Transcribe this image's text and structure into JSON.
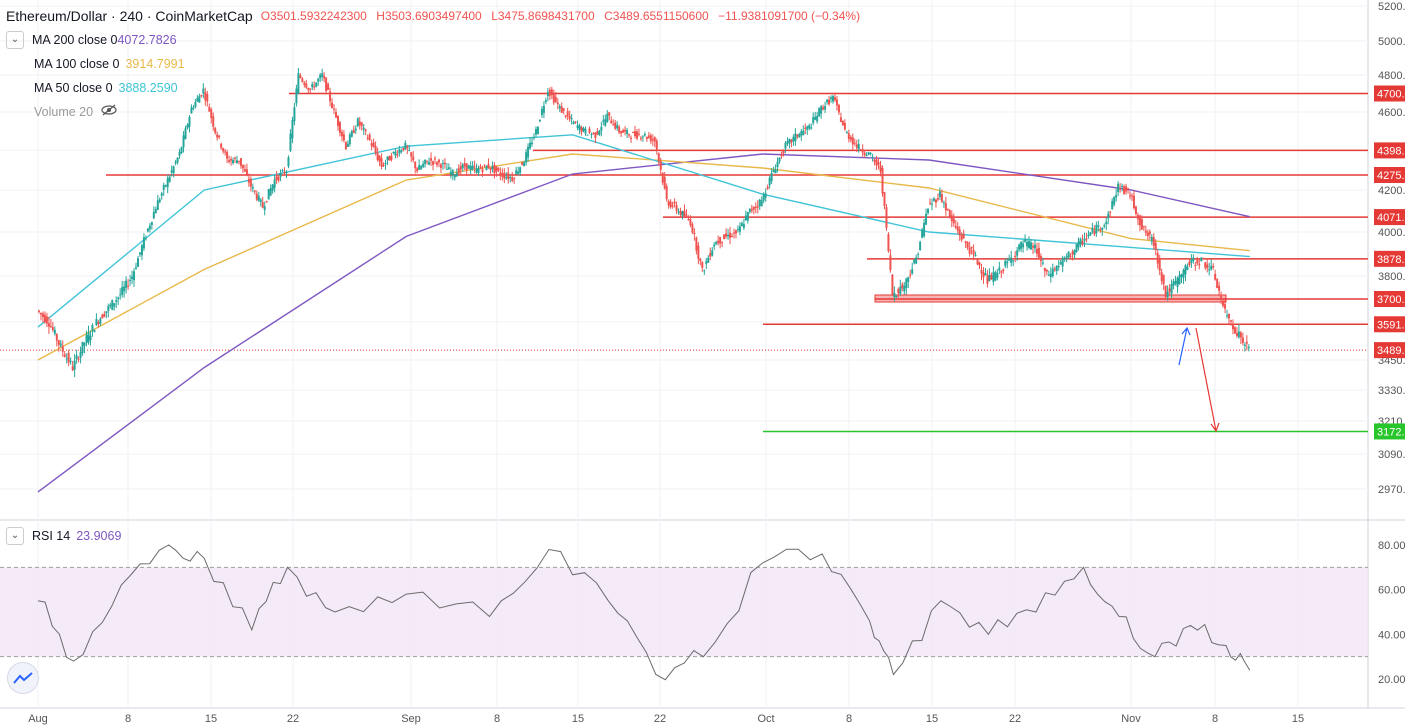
{
  "header": {
    "symbol": "Ethereum/Dollar",
    "interval": "240",
    "source": "CoinMarketCap",
    "ohlc": {
      "open": "O3501.5932242300",
      "high": "H3503.6903497400",
      "low": "L3475.8698431700",
      "close": "C3489.6551150600",
      "change": "−11.9381091700 (−0.34%)"
    }
  },
  "indicators": [
    {
      "label": "MA 200 close 0",
      "value": "4072.7826",
      "color": "#7e57c2"
    },
    {
      "label": "MA 100 close 0",
      "value": "3914.7991",
      "color": "#e8b84a"
    },
    {
      "label": "MA 50 close 0",
      "value": "3888.2590",
      "color": "#40c4d8"
    },
    {
      "label": "Volume 20",
      "value": "",
      "color": "#999999"
    }
  ],
  "rsi_panel": {
    "label": "RSI 14",
    "value": "23.9069"
  },
  "chart_data": {
    "type": "line",
    "price_axis": {
      "ticks": [
        5200,
        5000,
        4800,
        4600,
        4400,
        4200,
        4000,
        3800,
        3600,
        3450,
        3330,
        3210,
        3090,
        2970
      ],
      "labels": [
        "5200.0",
        "5000.0",
        "4800.0",
        "4600.0",
        "4400.0",
        "4200.0",
        "4000.0",
        "3800.0",
        "3600.0",
        "3450.0",
        "3330.0",
        "3210.0",
        "3090.0",
        "2970.0"
      ]
    },
    "rsi_axis": {
      "ticks": [
        80,
        60,
        40,
        20
      ],
      "labels": [
        "80.00",
        "60.00",
        "40.00",
        "20.00"
      ],
      "band": [
        30,
        70
      ]
    },
    "time_axis": [
      "Aug",
      "8",
      "15",
      "22",
      "Sep",
      "8",
      "15",
      "22",
      "Oct",
      "8",
      "15",
      "22",
      "Nov",
      "8",
      "15"
    ],
    "price_series": {
      "name": "Ethereum/Dollar",
      "points": [
        [
          "Aug 1",
          3650
        ],
        [
          "Aug 2",
          3600
        ],
        [
          "Aug 3",
          3500
        ],
        [
          "Aug 4",
          3420
        ],
        [
          "Aug 5",
          3520
        ],
        [
          "Aug 6",
          3600
        ],
        [
          "Aug 7",
          3660
        ],
        [
          "Aug 8",
          3720
        ],
        [
          "Aug 9",
          3800
        ],
        [
          "Aug 10",
          3960
        ],
        [
          "Aug 11",
          4120
        ],
        [
          "Aug 12",
          4250
        ],
        [
          "Aug 13",
          4380
        ],
        [
          "Aug 14",
          4620
        ],
        [
          "Aug 15",
          4720
        ],
        [
          "Aug 16",
          4500
        ],
        [
          "Aug 17",
          4350
        ],
        [
          "Aug 18",
          4350
        ],
        [
          "Aug 19",
          4220
        ],
        [
          "Aug 20",
          4120
        ],
        [
          "Aug 21",
          4250
        ],
        [
          "Aug 22",
          4300
        ],
        [
          "Aug 23",
          4800
        ],
        [
          "Aug 24",
          4720
        ],
        [
          "Aug 25",
          4800
        ],
        [
          "Aug 26",
          4600
        ],
        [
          "Aug 27",
          4420
        ],
        [
          "Aug 28",
          4550
        ],
        [
          "Aug 29",
          4450
        ],
        [
          "Aug 30",
          4320
        ],
        [
          "Aug 31",
          4380
        ],
        [
          "Sep 1",
          4420
        ],
        [
          "Sep 2",
          4300
        ],
        [
          "Sep 3",
          4350
        ],
        [
          "Sep 4",
          4330
        ],
        [
          "Sep 5",
          4280
        ],
        [
          "Sep 6",
          4320
        ],
        [
          "Sep 7",
          4300
        ],
        [
          "Sep 8",
          4320
        ],
        [
          "Sep 9",
          4280
        ],
        [
          "Sep 10",
          4260
        ],
        [
          "Sep 11",
          4350
        ],
        [
          "Sep 12",
          4500
        ],
        [
          "Sep 13",
          4720
        ],
        [
          "Sep 14",
          4620
        ],
        [
          "Sep 15",
          4550
        ],
        [
          "Sep 16",
          4500
        ],
        [
          "Sep 17",
          4480
        ],
        [
          "Sep 18",
          4580
        ],
        [
          "Sep 19",
          4500
        ],
        [
          "Sep 20",
          4480
        ],
        [
          "Sep 21",
          4480
        ],
        [
          "Sep 22",
          4450
        ],
        [
          "Sep 23",
          4150
        ],
        [
          "Sep 24",
          4100
        ],
        [
          "Sep 25",
          4050
        ],
        [
          "Sep 26",
          3820
        ],
        [
          "Sep 27",
          3950
        ],
        [
          "Sep 28",
          3980
        ],
        [
          "Sep 29",
          4000
        ],
        [
          "Sep 30",
          4100
        ],
        [
          "Oct 1",
          4150
        ],
        [
          "Oct 2",
          4300
        ],
        [
          "Oct 3",
          4420
        ],
        [
          "Oct 4",
          4480
        ],
        [
          "Oct 5",
          4520
        ],
        [
          "Oct 6",
          4620
        ],
        [
          "Oct 7",
          4680
        ],
        [
          "Oct 8",
          4500
        ],
        [
          "Oct 9",
          4420
        ],
        [
          "Oct 10",
          4380
        ],
        [
          "Oct 11",
          4300
        ],
        [
          "Oct 12",
          3720
        ],
        [
          "Oct 13",
          3760
        ],
        [
          "Oct 14",
          3880
        ],
        [
          "Oct 15",
          4120
        ],
        [
          "Oct 16",
          4180
        ],
        [
          "Oct 17",
          4050
        ],
        [
          "Oct 18",
          3960
        ],
        [
          "Oct 19",
          3880
        ],
        [
          "Oct 20",
          3780
        ],
        [
          "Oct 21",
          3820
        ],
        [
          "Oct 22",
          3880
        ],
        [
          "Oct 23",
          3950
        ],
        [
          "Oct 24",
          3930
        ],
        [
          "Oct 25",
          3800
        ],
        [
          "Oct 26",
          3850
        ],
        [
          "Oct 27",
          3900
        ],
        [
          "Oct 28",
          3960
        ],
        [
          "Oct 29",
          4010
        ],
        [
          "Oct 30",
          4050
        ],
        [
          "Oct 31",
          4220
        ],
        [
          "Nov 1",
          4180
        ],
        [
          "Nov 2",
          4020
        ],
        [
          "Nov 3",
          3950
        ],
        [
          "Nov 4",
          3720
        ],
        [
          "Nov 5",
          3780
        ],
        [
          "Nov 6",
          3860
        ],
        [
          "Nov 7",
          3870
        ],
        [
          "Nov 8",
          3820
        ],
        [
          "Nov 9",
          3640
        ],
        [
          "Nov 10",
          3560
        ],
        [
          "Nov 11",
          3489
        ]
      ]
    },
    "ma_series": [
      {
        "name": "MA 200 close 0",
        "points": [
          [
            "Aug 1",
            2960
          ],
          [
            "Aug 15",
            3420
          ],
          [
            "Sep 1",
            3980
          ],
          [
            "Sep 15",
            4280
          ],
          [
            "Oct 1",
            4380
          ],
          [
            "Oct 15",
            4350
          ],
          [
            "Nov 1",
            4200
          ],
          [
            "Nov 11",
            4072.7826
          ]
        ]
      },
      {
        "name": "MA 100 close 0",
        "points": [
          [
            "Aug 1",
            3450
          ],
          [
            "Aug 15",
            3830
          ],
          [
            "Sep 1",
            4250
          ],
          [
            "Sep 15",
            4380
          ],
          [
            "Oct 1",
            4310
          ],
          [
            "Oct 15",
            4210
          ],
          [
            "Nov 1",
            3970
          ],
          [
            "Nov 11",
            3914.7991
          ]
        ]
      },
      {
        "name": "MA 50 close 0",
        "points": [
          [
            "Aug 1",
            3580
          ],
          [
            "Aug 15",
            4200
          ],
          [
            "Sep 1",
            4420
          ],
          [
            "Sep 15",
            4480
          ],
          [
            "Oct 1",
            4180
          ],
          [
            "Oct 15",
            4000
          ],
          [
            "Nov 1",
            3930
          ],
          [
            "Nov 11",
            3888.259
          ]
        ]
      }
    ],
    "levels": [
      {
        "value": 4700,
        "label": "4700.0",
        "color": "#e53935"
      },
      {
        "value": 4398,
        "label": "4398.0",
        "color": "#e53935"
      },
      {
        "value": 4275,
        "label": "4275.0",
        "color": "#e53935"
      },
      {
        "value": 4071,
        "label": "4071.0",
        "color": "#e53935"
      },
      {
        "value": 3878,
        "label": "3878.0",
        "color": "#e53935"
      },
      {
        "value": 3700,
        "label": "3700.0",
        "color": "#e53935"
      },
      {
        "value": 3591,
        "label": "3591.0",
        "color": "#e53935"
      },
      {
        "value": 3489,
        "label": "3489.6",
        "color": "#e53935"
      },
      {
        "value": 3172,
        "label": "3172.0",
        "color": "#29c62b"
      }
    ],
    "rsi_series": {
      "name": "RSI 14",
      "points": [
        [
          "Aug 1",
          55
        ],
        [
          "Aug 4",
          28
        ],
        [
          "Aug 8",
          62
        ],
        [
          "Aug 12",
          80
        ],
        [
          "Aug 15",
          74
        ],
        [
          "Aug 19",
          42
        ],
        [
          "Aug 22",
          70
        ],
        [
          "Aug 26",
          50
        ],
        [
          "Sep 1",
          58
        ],
        [
          "Sep 8",
          48
        ],
        [
          "Sep 13",
          78
        ],
        [
          "Sep 18",
          55
        ],
        [
          "Sep 22",
          22
        ],
        [
          "Sep 26",
          30
        ],
        [
          "Oct 1",
          72
        ],
        [
          "Oct 6",
          76
        ],
        [
          "Oct 10",
          46
        ],
        [
          "Oct 12",
          22
        ],
        [
          "Oct 16",
          55
        ],
        [
          "Oct 20",
          40
        ],
        [
          "Oct 24",
          50
        ],
        [
          "Oct 28",
          70
        ],
        [
          "Oct 31",
          48
        ],
        [
          "Nov 3",
          30
        ],
        [
          "Nov 6",
          44
        ],
        [
          "Nov 9",
          35
        ],
        [
          "Nov 11",
          23.9069
        ]
      ]
    }
  }
}
